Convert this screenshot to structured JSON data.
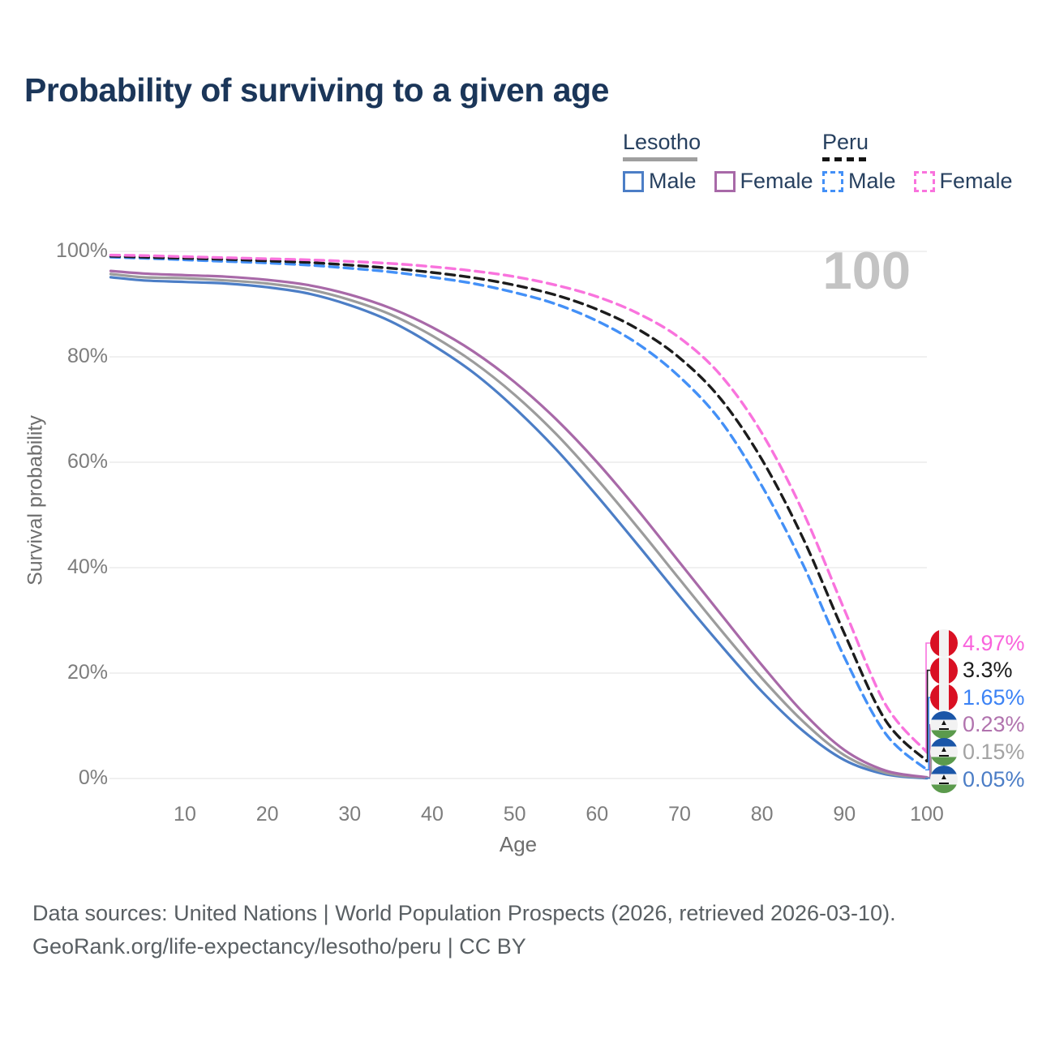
{
  "title": "Probability of surviving to a given age",
  "legend": {
    "lesotho": {
      "title": "Lesotho",
      "male": "Male",
      "female": "Female"
    },
    "peru": {
      "title": "Peru",
      "male": "Male",
      "female": "Female"
    }
  },
  "footer": {
    "line1": "Data sources: United Nations | World Population Prospects (2026, retrieved 2026-03-10).",
    "line2": "GeoRank.org/life-expectancy/lesotho/peru | CC BY"
  },
  "colors": {
    "title_text": "#1b3659",
    "legend_text": "#27405f",
    "lesotho_male": "#4c7ec6",
    "lesotho_total": "#9c9c9c",
    "lesotho_female": "#a869a8",
    "peru_male": "#4390f7",
    "peru_total": "#1c1c1c",
    "peru_female": "#f973dd",
    "gridline": "#ececec",
    "watermark": "#c3c3c3"
  },
  "chart_data": {
    "type": "line",
    "title": "Probability of surviving to a given age",
    "xlabel": "Age",
    "ylabel": "Survival probability",
    "xlim": [
      0,
      100
    ],
    "ylim": [
      0,
      100
    ],
    "grid": true,
    "legend_position": "top-right",
    "age_indicator": "100",
    "x_ticks": [
      10,
      20,
      30,
      40,
      50,
      60,
      70,
      80,
      90,
      100
    ],
    "y_ticks": [
      {
        "value": 0,
        "label": "0%"
      },
      {
        "value": 20,
        "label": "20%"
      },
      {
        "value": 40,
        "label": "40%"
      },
      {
        "value": 60,
        "label": "60%"
      },
      {
        "value": 80,
        "label": "80%"
      },
      {
        "value": 100,
        "label": "100%"
      }
    ],
    "x": [
      1,
      5,
      10,
      15,
      20,
      25,
      30,
      35,
      40,
      45,
      50,
      55,
      60,
      65,
      70,
      75,
      80,
      85,
      90,
      95,
      100
    ],
    "series": [
      {
        "key": "lesotho_male",
        "name": "Lesotho Male",
        "country": "Lesotho",
        "sex": "Male",
        "style": "solid",
        "color": "#4c7ec6",
        "values": [
          95.1,
          94.5,
          94.2,
          93.9,
          93.2,
          92.0,
          89.8,
          86.7,
          82.3,
          77.0,
          70.3,
          62.5,
          53.6,
          44.2,
          34.6,
          25.3,
          16.5,
          9.0,
          3.5,
          0.8,
          0.05
        ]
      },
      {
        "key": "lesotho_total",
        "name": "Lesotho Total",
        "country": "Lesotho",
        "sex": "Both",
        "style": "solid",
        "color": "#9c9c9c",
        "values": [
          95.7,
          95.1,
          94.9,
          94.5,
          93.9,
          92.8,
          90.8,
          88.0,
          84.0,
          79.0,
          72.8,
          65.4,
          56.8,
          47.5,
          37.8,
          28.2,
          19.0,
          10.8,
          4.4,
          1.1,
          0.15
        ]
      },
      {
        "key": "lesotho_female",
        "name": "Lesotho Female",
        "country": "Lesotho",
        "sex": "Female",
        "style": "solid",
        "color": "#a869a8",
        "values": [
          96.3,
          95.8,
          95.5,
          95.2,
          94.6,
          93.6,
          91.8,
          89.2,
          85.6,
          81.0,
          75.2,
          68.2,
          60.0,
          50.8,
          41.0,
          31.2,
          21.5,
          12.5,
          5.4,
          1.5,
          0.23
        ]
      },
      {
        "key": "peru_male",
        "name": "Peru Male",
        "country": "Peru",
        "sex": "Male",
        "style": "dashed",
        "color": "#4390f7",
        "values": [
          98.9,
          98.7,
          98.4,
          98.1,
          97.8,
          97.4,
          96.8,
          96.1,
          95.1,
          93.9,
          92.2,
          90.0,
          86.8,
          82.4,
          76.2,
          67.8,
          55.5,
          40.5,
          23.0,
          8.5,
          1.65
        ]
      },
      {
        "key": "peru_total",
        "name": "Peru Total",
        "country": "Peru",
        "sex": "Both",
        "style": "dashed",
        "color": "#1c1c1c",
        "values": [
          99.1,
          98.9,
          98.7,
          98.5,
          98.2,
          97.9,
          97.4,
          96.8,
          96.0,
          95.0,
          93.6,
          91.7,
          89.0,
          85.2,
          79.8,
          72.0,
          60.5,
          45.5,
          27.5,
          11.0,
          3.3
        ]
      },
      {
        "key": "peru_female",
        "name": "Peru Female",
        "country": "Peru",
        "sex": "Female",
        "style": "dashed",
        "color": "#f973dd",
        "values": [
          99.3,
          99.2,
          99.0,
          98.8,
          98.6,
          98.4,
          98.1,
          97.7,
          97.1,
          96.3,
          95.2,
          93.6,
          91.4,
          88.2,
          83.6,
          76.5,
          65.5,
          50.5,
          32.0,
          14.0,
          4.97
        ]
      }
    ],
    "end_labels": [
      {
        "series": "peru_female",
        "text": "4.97%",
        "color": "#f963dc",
        "flag": "peru"
      },
      {
        "series": "peru_total",
        "text": "3.3%",
        "color": "#1c1c1c",
        "flag": "peru"
      },
      {
        "series": "peru_male",
        "text": "1.65%",
        "color": "#3b82f5",
        "flag": "peru"
      },
      {
        "series": "lesotho_female",
        "text": "0.23%",
        "color": "#b173ae",
        "flag": "lesotho"
      },
      {
        "series": "lesotho_total",
        "text": "0.15%",
        "color": "#a3a3a3",
        "flag": "lesotho"
      },
      {
        "series": "lesotho_male",
        "text": "0.05%",
        "color": "#4b7dc6",
        "flag": "lesotho"
      }
    ]
  }
}
